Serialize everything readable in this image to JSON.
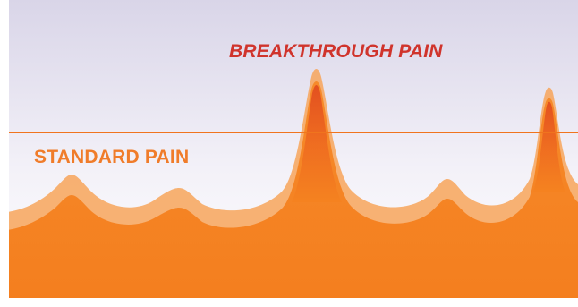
{
  "labels": {
    "breakthrough": "BREAKTHROUGH PAIN",
    "standard": "STANDARD PAIN"
  },
  "colors": {
    "background_top": "#d9d5e8",
    "background_bottom": "#ffffff",
    "threshold_line": "#f0741e",
    "fill_base": "#f58220",
    "fill_light": "#f7a45a",
    "peak_dark": "#e2541c",
    "breakthrough_text": "#d0342c",
    "standard_text": "#f07c2a"
  }
}
